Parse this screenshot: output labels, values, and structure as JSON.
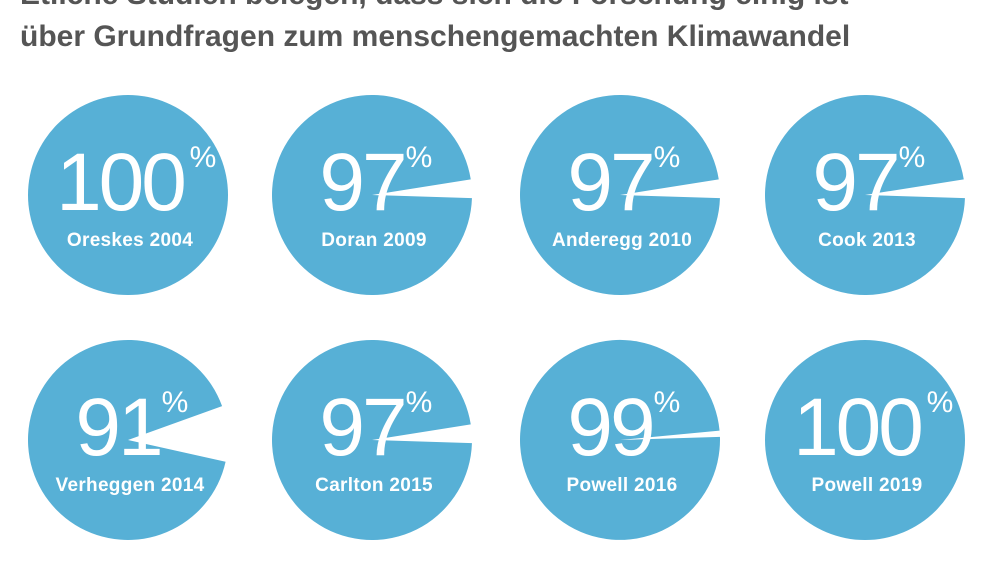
{
  "title_lines": [
    "Etliche Studien belegen, dass sich die Forschung einig ist",
    "über Grundfragen zum menschengemachten Klimawandel"
  ],
  "chart_data": {
    "type": "pie",
    "percent_symbol": "%",
    "colors": {
      "circle": "#57b0d6",
      "text": "#ffffff",
      "title": "#555555"
    },
    "studies": [
      {
        "label": "Oreskes 2004",
        "value": 100
      },
      {
        "label": "Doran 2009",
        "value": 97
      },
      {
        "label": "Anderegg 2010",
        "value": 97
      },
      {
        "label": "Cook 2013",
        "value": 97
      },
      {
        "label": "Verheggen 2014",
        "value": 91
      },
      {
        "label": "Carlton 2015",
        "value": 97
      },
      {
        "label": "Powell 2016",
        "value": 99
      },
      {
        "label": "Powell 2019",
        "value": 100
      }
    ]
  }
}
